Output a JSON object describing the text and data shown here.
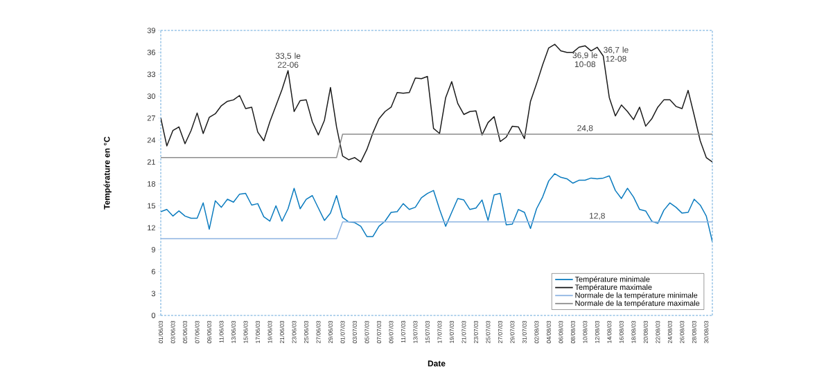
{
  "chart_data": {
    "type": "line",
    "xlabel": "Date",
    "ylabel": "Température en °C",
    "categories": [
      "01/06/03",
      null,
      "03/06/03",
      null,
      "05/06/03",
      null,
      "07/06/03",
      null,
      "09/06/03",
      null,
      "11/06/03",
      null,
      "13/06/03",
      null,
      "15/06/03",
      null,
      "17/06/03",
      null,
      "19/06/03",
      null,
      "21/06/03",
      null,
      "23/06/03",
      null,
      "25/06/03",
      null,
      "27/06/03",
      null,
      "29/06/03",
      null,
      "01/07/03",
      null,
      "03/07/03",
      null,
      "05/07/03",
      null,
      "07/07/03",
      null,
      "09/07/03",
      null,
      "11/07/03",
      null,
      "13/07/03",
      null,
      "15/07/03",
      null,
      "17/07/03",
      null,
      "19/07/03",
      null,
      "21/07/03",
      null,
      "23/07/03",
      null,
      "25/07/03",
      null,
      "27/07/03",
      null,
      "29/07/03",
      null,
      "31/07/03",
      null,
      "02/08/03",
      null,
      "04/08/03",
      null,
      "06/08/03",
      null,
      "08/08/03",
      null,
      "10/08/03",
      null,
      "12/08/03",
      null,
      "14/08/03",
      null,
      "16/08/03",
      null,
      "18/08/03",
      null,
      "20/08/03",
      null,
      "22/08/03",
      null,
      "24/08/03",
      null,
      "26/08/03",
      null,
      "28/08/03",
      null,
      "30/08/03",
      null
    ],
    "series": [
      {
        "name": "Température minimale",
        "color": "#0a7bbf",
        "values": [
          14.2,
          14.5,
          13.6,
          14.3,
          13.6,
          13.3,
          13.3,
          15.4,
          11.8,
          15.7,
          14.8,
          15.9,
          15.5,
          16.6,
          16.7,
          15.1,
          15.3,
          13.5,
          12.9,
          15.0,
          12.9,
          14.6,
          17.4,
          14.6,
          15.9,
          16.4,
          14.7,
          13.0,
          14.0,
          16.4,
          13.4,
          12.8,
          12.7,
          12.2,
          10.8,
          10.8,
          12.2,
          12.9,
          14.1,
          14.2,
          15.3,
          14.5,
          14.8,
          16.1,
          16.7,
          17.1,
          14.5,
          12.2,
          14.1,
          16.0,
          15.8,
          14.5,
          14.7,
          15.8,
          13.0,
          16.5,
          16.7,
          12.4,
          12.5,
          14.5,
          14.1,
          11.9,
          14.6,
          16.2,
          18.4,
          19.4,
          18.9,
          18.7,
          18.1,
          18.5,
          18.5,
          18.8,
          18.7,
          18.8,
          19.1,
          17.1,
          16.0,
          17.4,
          16.2,
          14.5,
          14.3,
          12.9,
          12.6,
          14.4,
          15.4,
          14.8,
          14.0,
          14.1,
          15.9,
          15.1,
          13.6,
          10.1
        ]
      },
      {
        "name": "Température maximale",
        "color": "#1a1a1a",
        "values": [
          27.0,
          23.2,
          25.3,
          25.8,
          23.5,
          25.3,
          27.7,
          24.9,
          27.1,
          27.6,
          28.7,
          29.3,
          29.5,
          30.1,
          28.3,
          28.5,
          25.1,
          23.9,
          26.5,
          28.7,
          30.9,
          33.5,
          27.9,
          29.4,
          29.5,
          26.5,
          24.7,
          26.7,
          31.2,
          25.8,
          21.8,
          21.3,
          21.6,
          21.0,
          22.7,
          25.0,
          26.9,
          27.9,
          28.5,
          30.5,
          30.4,
          30.5,
          32.5,
          32.4,
          32.7,
          25.6,
          24.9,
          29.8,
          32.0,
          29.0,
          27.5,
          27.9,
          28.0,
          24.7,
          26.4,
          27.2,
          23.8,
          24.4,
          25.9,
          25.8,
          24.2,
          29.3,
          31.7,
          34.3,
          36.6,
          37.1,
          36.2,
          36.0,
          36.0,
          36.7,
          36.9,
          36.2,
          36.7,
          35.5,
          29.8,
          27.3,
          28.8,
          27.9,
          26.8,
          28.5,
          25.9,
          26.9,
          28.5,
          29.5,
          29.5,
          28.6,
          28.3,
          30.8,
          27.4,
          23.9,
          21.6,
          21.0
        ]
      },
      {
        "name": "Normale de la température minimale",
        "color": "#8db4e2",
        "values": [
          10.5,
          10.5,
          10.5,
          10.5,
          10.5,
          10.5,
          10.5,
          10.5,
          10.5,
          10.5,
          10.5,
          10.5,
          10.5,
          10.5,
          10.5,
          10.5,
          10.5,
          10.5,
          10.5,
          10.5,
          10.5,
          10.5,
          10.5,
          10.5,
          10.5,
          10.5,
          10.5,
          10.5,
          10.5,
          10.5,
          12.8,
          12.8,
          12.8,
          12.8,
          12.8,
          12.8,
          12.8,
          12.8,
          12.8,
          12.8,
          12.8,
          12.8,
          12.8,
          12.8,
          12.8,
          12.8,
          12.8,
          12.8,
          12.8,
          12.8,
          12.8,
          12.8,
          12.8,
          12.8,
          12.8,
          12.8,
          12.8,
          12.8,
          12.8,
          12.8,
          12.8,
          12.8,
          12.8,
          12.8,
          12.8,
          12.8,
          12.8,
          12.8,
          12.8,
          12.8,
          12.8,
          12.8,
          12.8,
          12.8,
          12.8,
          12.8,
          12.8,
          12.8,
          12.8,
          12.8,
          12.8,
          12.8,
          12.8,
          12.8,
          12.8,
          12.8,
          12.8,
          12.8,
          12.8,
          12.8,
          12.8,
          12.8
        ]
      },
      {
        "name": "Normale de la température maximale",
        "color": "#8c8c8c",
        "values": [
          21.6,
          21.6,
          21.6,
          21.6,
          21.6,
          21.6,
          21.6,
          21.6,
          21.6,
          21.6,
          21.6,
          21.6,
          21.6,
          21.6,
          21.6,
          21.6,
          21.6,
          21.6,
          21.6,
          21.6,
          21.6,
          21.6,
          21.6,
          21.6,
          21.6,
          21.6,
          21.6,
          21.6,
          21.6,
          21.6,
          24.8,
          24.8,
          24.8,
          24.8,
          24.8,
          24.8,
          24.8,
          24.8,
          24.8,
          24.8,
          24.8,
          24.8,
          24.8,
          24.8,
          24.8,
          24.8,
          24.8,
          24.8,
          24.8,
          24.8,
          24.8,
          24.8,
          24.8,
          24.8,
          24.8,
          24.8,
          24.8,
          24.8,
          24.8,
          24.8,
          24.8,
          24.8,
          24.8,
          24.8,
          24.8,
          24.8,
          24.8,
          24.8,
          24.8,
          24.8,
          24.8,
          24.8,
          24.8,
          24.8,
          24.8,
          24.8,
          24.8,
          24.8,
          24.8,
          24.8,
          24.8,
          24.8,
          24.8,
          24.8,
          24.8,
          24.8,
          24.8,
          24.8,
          24.8,
          24.8,
          24.8,
          24.8
        ]
      }
    ],
    "ylim": [
      0,
      39
    ],
    "yticks": [
      0,
      3,
      6,
      9,
      12,
      15,
      18,
      21,
      24,
      27,
      30,
      33,
      36,
      39
    ],
    "legend": "bottom right",
    "annotations": [
      {
        "text": "33,5 le 22-06",
        "y": 33.5
      },
      {
        "text": "36,9 le 10-08",
        "x": "10/08/03",
        "y": 36.9
      },
      {
        "text": "36,7 le 12-08",
        "x": "12/08/03",
        "y": 36.7
      },
      {
        "text": "24,8",
        "x": "10/08/03",
        "y": 24.8
      },
      {
        "text": "12,8",
        "x": "12/08/03",
        "y": 12.8
      }
    ]
  }
}
